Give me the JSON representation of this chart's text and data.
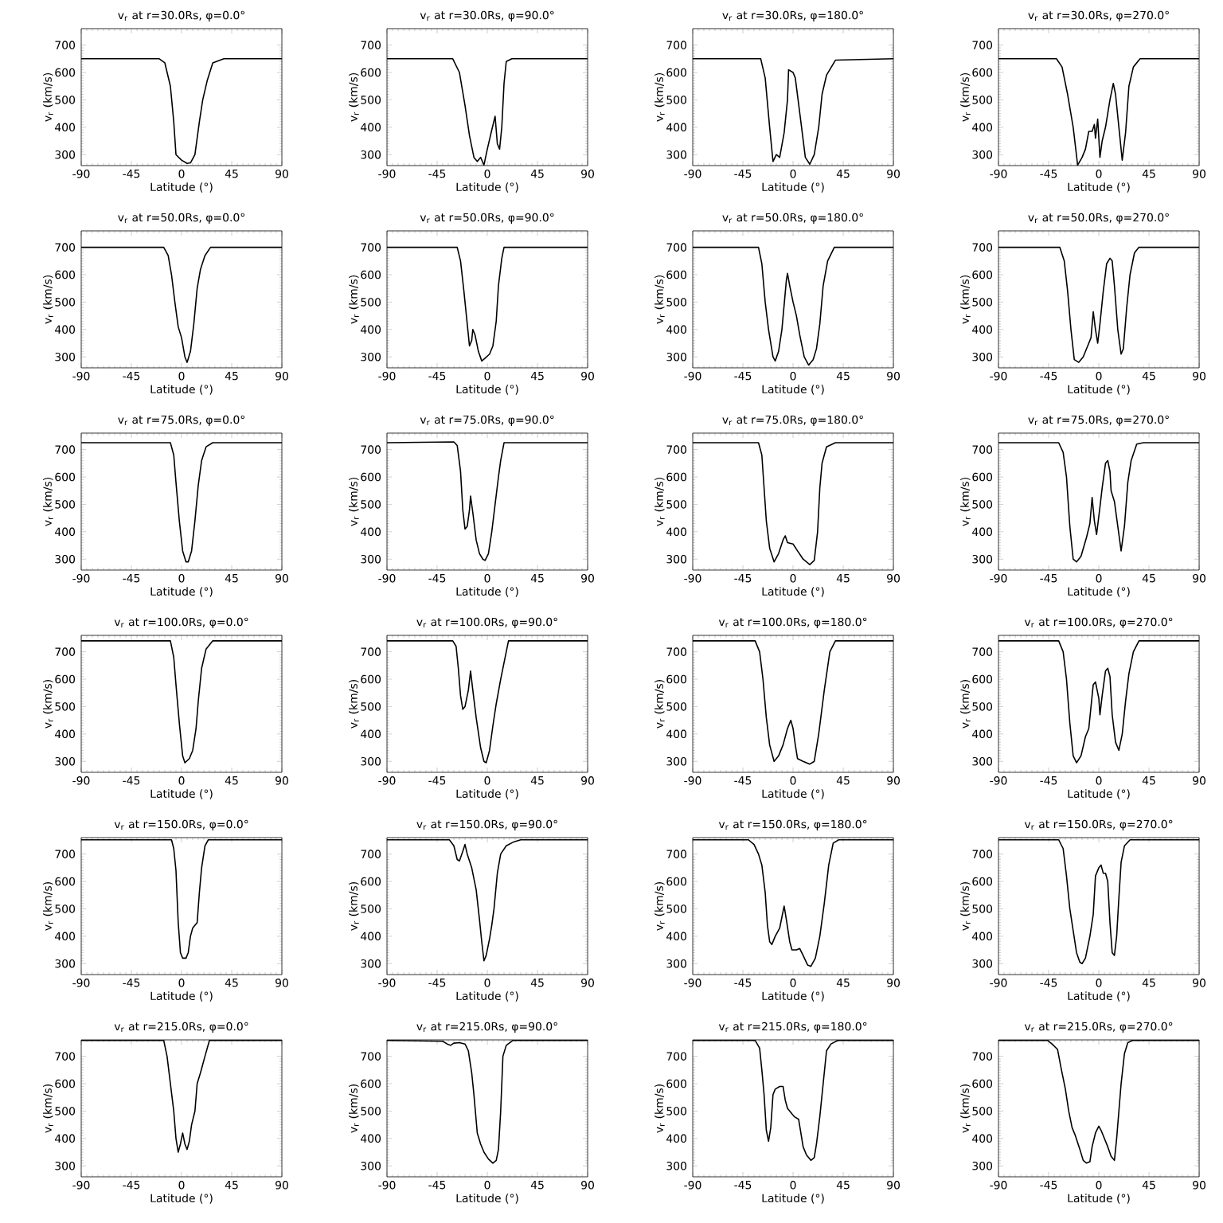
{
  "chart_data": [
    {
      "type": "line",
      "title": "v$_{r}$ at r=30.0Rs, φ=0.0°",
      "xlabel": "Latitude (°)",
      "ylabel": "v$_{r}$ (km/s)",
      "color": "#000000",
      "xlim": [
        -90,
        90
      ],
      "xticks": [
        -90,
        -45,
        0,
        45,
        90
      ],
      "ylim": [
        260,
        760
      ],
      "yticks": [
        300,
        400,
        500,
        600,
        700
      ],
      "x": [
        -90,
        -20,
        -15,
        -10,
        -7,
        -5,
        0,
        5,
        8,
        12,
        16,
        19,
        23,
        28,
        38,
        90
      ],
      "values": [
        650,
        650,
        635,
        550,
        420,
        300,
        280,
        268,
        270,
        300,
        420,
        500,
        570,
        635,
        650,
        650
      ]
    },
    {
      "type": "line",
      "title": "v$_{r}$ at r=30.0Rs, φ=90.0°",
      "xlabel": "Latitude (°)",
      "ylabel": "v$_{r}$ (km/s)",
      "color": "#000000",
      "xlim": [
        -90,
        90
      ],
      "xticks": [
        -90,
        -45,
        0,
        45,
        90
      ],
      "ylim": [
        260,
        760
      ],
      "yticks": [
        300,
        400,
        500,
        600,
        700
      ],
      "x": [
        -90,
        -31,
        -25,
        -20,
        -16,
        -12,
        -9,
        -6,
        -3,
        0,
        4,
        7,
        9,
        11,
        13,
        15,
        17,
        22,
        90
      ],
      "values": [
        650,
        650,
        600,
        480,
        370,
        290,
        275,
        290,
        262,
        320,
        390,
        440,
        340,
        320,
        400,
        560,
        640,
        650,
        650
      ]
    },
    {
      "type": "line",
      "title": "v$_{r}$ at r=30.0Rs, φ=180.0°",
      "xlabel": "Latitude (°)",
      "ylabel": "v$_{r}$ (km/s)",
      "color": "#000000",
      "xlim": [
        -90,
        90
      ],
      "xticks": [
        -90,
        -45,
        0,
        45,
        90
      ],
      "ylim": [
        260,
        760
      ],
      "yticks": [
        300,
        400,
        500,
        600,
        700
      ],
      "x": [
        -90,
        -29,
        -25,
        -21,
        -18,
        -15,
        -12,
        -8,
        -5,
        -4,
        0,
        2,
        7,
        11,
        15,
        19,
        23,
        26,
        30,
        38,
        90
      ],
      "values": [
        650,
        650,
        580,
        400,
        275,
        300,
        290,
        380,
        500,
        610,
        600,
        580,
        420,
        290,
        265,
        300,
        400,
        520,
        590,
        645,
        650
      ]
    },
    {
      "type": "line",
      "title": "v$_{r}$ at r=30.0Rs, φ=270.0°",
      "xlabel": "Latitude (°)",
      "ylabel": "v$_{r}$ (km/s)",
      "color": "#000000",
      "xlim": [
        -90,
        90
      ],
      "xticks": [
        -90,
        -45,
        0,
        45,
        90
      ],
      "ylim": [
        260,
        760
      ],
      "yticks": [
        300,
        400,
        500,
        600,
        700
      ],
      "x": [
        -90,
        -38,
        -33,
        -28,
        -23,
        -19,
        -15,
        -12,
        -9,
        -6,
        -4,
        -3,
        -1,
        1,
        3,
        6,
        10,
        13,
        15,
        18,
        21,
        24,
        27,
        31,
        37,
        90
      ],
      "values": [
        650,
        650,
        620,
        520,
        400,
        262,
        290,
        320,
        385,
        385,
        410,
        360,
        430,
        290,
        350,
        400,
        500,
        560,
        520,
        400,
        280,
        380,
        550,
        620,
        650,
        650
      ]
    },
    {
      "type": "line",
      "title": "v$_{r}$ at r=50.0Rs, φ=0.0°",
      "xlabel": "Latitude (°)",
      "ylabel": "v$_{r}$ (km/s)",
      "color": "#000000",
      "xlim": [
        -90,
        90
      ],
      "xticks": [
        -90,
        -45,
        0,
        45,
        90
      ],
      "ylim": [
        260,
        760
      ],
      "yticks": [
        300,
        400,
        500,
        600,
        700
      ],
      "x": [
        -90,
        -16,
        -12,
        -9,
        -6,
        -3,
        0,
        3,
        5,
        8,
        11,
        14,
        17,
        21,
        26,
        90
      ],
      "values": [
        700,
        700,
        670,
        600,
        500,
        410,
        370,
        300,
        280,
        320,
        420,
        550,
        620,
        670,
        700,
        700
      ]
    },
    {
      "type": "line",
      "title": "v$_{r}$ at r=50.0Rs, φ=90.0°",
      "xlabel": "Latitude (°)",
      "ylabel": "v$_{r}$ (km/s)",
      "color": "#000000",
      "xlim": [
        -90,
        90
      ],
      "xticks": [
        -90,
        -45,
        0,
        45,
        90
      ],
      "ylim": [
        260,
        760
      ],
      "yticks": [
        300,
        400,
        500,
        600,
        700
      ],
      "x": [
        -90,
        -27,
        -24,
        -21,
        -18,
        -16,
        -14,
        -13,
        -11,
        -8,
        -5,
        -2,
        2,
        5,
        8,
        10,
        13,
        15,
        90
      ],
      "values": [
        700,
        700,
        650,
        540,
        420,
        340,
        360,
        400,
        380,
        320,
        285,
        295,
        310,
        340,
        430,
        560,
        660,
        700,
        700
      ]
    },
    {
      "type": "line",
      "title": "v$_{r}$ at r=50.0Rs, φ=180.0°",
      "xlabel": "Latitude (°)",
      "ylabel": "v$_{r}$ (km/s)",
      "color": "#000000",
      "xlim": [
        -90,
        90
      ],
      "xticks": [
        -90,
        -45,
        0,
        45,
        90
      ],
      "ylim": [
        260,
        760
      ],
      "yticks": [
        300,
        400,
        500,
        600,
        700
      ],
      "x": [
        -90,
        -31,
        -28,
        -25,
        -22,
        -18,
        -16,
        -13,
        -10,
        -6,
        -5,
        -3,
        0,
        3,
        6,
        10,
        14,
        18,
        21,
        24,
        27,
        31,
        37,
        90
      ],
      "values": [
        700,
        700,
        640,
        500,
        400,
        300,
        285,
        320,
        400,
        580,
        605,
        560,
        500,
        450,
        380,
        300,
        270,
        290,
        330,
        420,
        560,
        650,
        700,
        700
      ]
    },
    {
      "type": "line",
      "title": "v$_{r}$ at r=50.0Rs, φ=270.0°",
      "xlabel": "Latitude (°)",
      "ylabel": "v$_{r}$ (km/s)",
      "color": "#000000",
      "xlim": [
        -90,
        90
      ],
      "xticks": [
        -90,
        -45,
        0,
        45,
        90
      ],
      "ylim": [
        260,
        760
      ],
      "yticks": [
        300,
        400,
        500,
        600,
        700
      ],
      "x": [
        -90,
        -35,
        -31,
        -28,
        -25,
        -22,
        -18,
        -14,
        -10,
        -7,
        -5,
        -3,
        -1,
        1,
        4,
        7,
        10,
        12,
        14,
        17,
        20,
        22,
        25,
        28,
        32,
        36,
        90
      ],
      "values": [
        700,
        700,
        650,
        540,
        400,
        290,
        280,
        300,
        340,
        370,
        465,
        400,
        350,
        420,
        540,
        640,
        660,
        650,
        560,
        400,
        310,
        330,
        480,
        600,
        680,
        700,
        700
      ]
    },
    {
      "type": "line",
      "title": "v$_{r}$ at r=75.0Rs, φ=0.0°",
      "xlabel": "Latitude (°)",
      "ylabel": "v$_{r}$ (km/s)",
      "color": "#000000",
      "xlim": [
        -90,
        90
      ],
      "xticks": [
        -90,
        -45,
        0,
        45,
        90
      ],
      "ylim": [
        260,
        760
      ],
      "yticks": [
        300,
        400,
        500,
        600,
        700
      ],
      "x": [
        -90,
        -10,
        -7,
        -5,
        -2,
        1,
        4,
        6,
        9,
        12,
        15,
        18,
        22,
        28,
        90
      ],
      "values": [
        725,
        725,
        680,
        580,
        440,
        330,
        290,
        290,
        330,
        440,
        570,
        660,
        710,
        725,
        725
      ]
    },
    {
      "type": "line",
      "title": "v$_{r}$ at r=75.0Rs, φ=90.0°",
      "xlabel": "Latitude (°)",
      "ylabel": "v$_{r}$ (km/s)",
      "color": "#000000",
      "xlim": [
        -90,
        90
      ],
      "xticks": [
        -90,
        -45,
        0,
        45,
        90
      ],
      "ylim": [
        260,
        760
      ],
      "yticks": [
        300,
        400,
        500,
        600,
        700
      ],
      "x": [
        -90,
        -30,
        -27,
        -24,
        -22,
        -20,
        -18,
        -16,
        -15,
        -13,
        -10,
        -7,
        -4,
        -2,
        1,
        4,
        7,
        10,
        12,
        15,
        90
      ],
      "values": [
        725,
        728,
        715,
        620,
        480,
        410,
        420,
        480,
        530,
        470,
        370,
        320,
        300,
        295,
        320,
        400,
        500,
        600,
        660,
        725,
        725
      ]
    },
    {
      "type": "line",
      "title": "v$_{r}$ at r=75.0Rs, φ=180.0°",
      "xlabel": "Latitude (°)",
      "ylabel": "v$_{r}$ (km/s)",
      "color": "#000000",
      "xlim": [
        -90,
        90
      ],
      "xticks": [
        -90,
        -45,
        0,
        45,
        90
      ],
      "ylim": [
        260,
        760
      ],
      "yticks": [
        300,
        400,
        500,
        600,
        700
      ],
      "x": [
        -90,
        -31,
        -28,
        -26,
        -24,
        -21,
        -17,
        -13,
        -9,
        -7,
        -5,
        0,
        4,
        9,
        15,
        19,
        22,
        24,
        26,
        30,
        38,
        90
      ],
      "values": [
        725,
        725,
        680,
        560,
        440,
        340,
        290,
        320,
        370,
        385,
        360,
        355,
        330,
        300,
        280,
        295,
        400,
        560,
        650,
        710,
        725,
        725
      ]
    },
    {
      "type": "line",
      "title": "v$_{r}$ at r=75.0Rs, φ=270.0°",
      "xlabel": "Latitude (°)",
      "ylabel": "v$_{r}$ (km/s)",
      "color": "#000000",
      "xlim": [
        -90,
        90
      ],
      "xticks": [
        -90,
        -45,
        0,
        45,
        90
      ],
      "ylim": [
        260,
        760
      ],
      "yticks": [
        300,
        400,
        500,
        600,
        700
      ],
      "x": [
        -90,
        -36,
        -32,
        -29,
        -26,
        -23,
        -20,
        -16,
        -11,
        -8,
        -6,
        -4,
        -2,
        1,
        3,
        6,
        8,
        10,
        11,
        14,
        17,
        20,
        23,
        26,
        29,
        34,
        40,
        90
      ],
      "values": [
        725,
        725,
        690,
        600,
        420,
        300,
        290,
        310,
        380,
        430,
        525,
        440,
        390,
        490,
        560,
        650,
        660,
        620,
        550,
        510,
        420,
        330,
        420,
        580,
        660,
        720,
        725,
        725
      ]
    },
    {
      "type": "line",
      "title": "v$_{r}$ at r=100.0Rs, φ=0.0°",
      "xlabel": "Latitude (°)",
      "ylabel": "v$_{r}$ (km/s)",
      "color": "#000000",
      "xlim": [
        -90,
        90
      ],
      "xticks": [
        -90,
        -45,
        0,
        45,
        90
      ],
      "ylim": [
        260,
        760
      ],
      "yticks": [
        300,
        400,
        500,
        600,
        700
      ],
      "x": [
        -90,
        -10,
        -7,
        -5,
        -2,
        1,
        3,
        7,
        10,
        13,
        15,
        18,
        22,
        28,
        90
      ],
      "values": [
        740,
        740,
        680,
        580,
        440,
        320,
        295,
        310,
        340,
        420,
        520,
        640,
        710,
        740,
        740
      ]
    },
    {
      "type": "line",
      "title": "v$_{r}$ at r=100.0Rs, φ=90.0°",
      "xlabel": "Latitude (°)",
      "ylabel": "v$_{r}$ (km/s)",
      "color": "#000000",
      "xlim": [
        -90,
        90
      ],
      "xticks": [
        -90,
        -45,
        0,
        45,
        90
      ],
      "ylim": [
        260,
        760
      ],
      "yticks": [
        300,
        400,
        500,
        600,
        700
      ],
      "x": [
        -90,
        -31,
        -28,
        -26,
        -24,
        -22,
        -20,
        -17,
        -15,
        -13,
        -10,
        -6,
        -3,
        -1,
        2,
        5,
        8,
        12,
        15,
        19,
        90
      ],
      "values": [
        740,
        740,
        720,
        640,
        540,
        490,
        500,
        560,
        630,
        560,
        460,
        350,
        300,
        295,
        340,
        430,
        510,
        600,
        660,
        740,
        740
      ]
    },
    {
      "type": "line",
      "title": "v$_{r}$ at r=100.0Rs, φ=180.0°",
      "xlabel": "Latitude (°)",
      "ylabel": "v$_{r}$ (km/s)",
      "color": "#000000",
      "xlim": [
        -90,
        90
      ],
      "xticks": [
        -90,
        -45,
        0,
        45,
        90
      ],
      "ylim": [
        260,
        760
      ],
      "yticks": [
        300,
        400,
        500,
        600,
        700
      ],
      "x": [
        -90,
        -34,
        -30,
        -27,
        -24,
        -21,
        -17,
        -13,
        -9,
        -5,
        -2,
        0,
        2,
        4,
        9,
        15,
        19,
        23,
        28,
        33,
        38,
        90
      ],
      "values": [
        740,
        740,
        700,
        600,
        460,
        360,
        300,
        320,
        360,
        420,
        450,
        420,
        360,
        310,
        300,
        290,
        300,
        400,
        560,
        700,
        740,
        740
      ]
    },
    {
      "type": "line",
      "title": "v$_{r}$ at r=100.0Rs, φ=270.0°",
      "xlabel": "Latitude (°)",
      "ylabel": "v$_{r}$ (km/s)",
      "color": "#000000",
      "xlim": [
        -90,
        90
      ],
      "xticks": [
        -90,
        -45,
        0,
        45,
        90
      ],
      "ylim": [
        260,
        760
      ],
      "yticks": [
        300,
        400,
        500,
        600,
        700
      ],
      "x": [
        -90,
        -36,
        -32,
        -29,
        -26,
        -23,
        -20,
        -16,
        -12,
        -9,
        -7,
        -5,
        -3,
        0,
        1,
        3,
        6,
        8,
        10,
        12,
        15,
        18,
        21,
        24,
        27,
        31,
        36,
        90
      ],
      "values": [
        740,
        740,
        700,
        600,
        440,
        320,
        295,
        320,
        390,
        420,
        500,
        580,
        590,
        530,
        470,
        540,
        630,
        640,
        610,
        470,
        370,
        340,
        400,
        520,
        620,
        700,
        740,
        740
      ]
    },
    {
      "type": "line",
      "title": "v$_{r}$ at r=150.0Rs, φ=0.0°",
      "xlabel": "Latitude (°)",
      "ylabel": "v$_{r}$ (km/s)",
      "color": "#000000",
      "xlim": [
        -90,
        90
      ],
      "xticks": [
        -90,
        -45,
        0,
        45,
        90
      ],
      "ylim": [
        260,
        760
      ],
      "yticks": [
        300,
        400,
        500,
        600,
        700
      ],
      "x": [
        -90,
        -9,
        -7,
        -5,
        -3,
        -1,
        1,
        4,
        6,
        8,
        10,
        14,
        16,
        18,
        21,
        24,
        90
      ],
      "values": [
        752,
        752,
        720,
        640,
        450,
        340,
        320,
        320,
        340,
        400,
        430,
        450,
        560,
        650,
        730,
        752,
        752
      ]
    },
    {
      "type": "line",
      "title": "v$_{r}$ at r=150.0Rs, φ=90.0°",
      "xlabel": "Latitude (°)",
      "ylabel": "v$_{r}$ (km/s)",
      "color": "#000000",
      "xlim": [
        -90,
        90
      ],
      "xticks": [
        -90,
        -45,
        0,
        45,
        90
      ],
      "ylim": [
        260,
        760
      ],
      "yticks": [
        300,
        400,
        500,
        600,
        700
      ],
      "x": [
        -90,
        -34,
        -30,
        -27,
        -25,
        -22,
        -20,
        -18,
        -14,
        -10,
        -7,
        -5,
        -3,
        -1,
        2,
        4,
        6,
        9,
        12,
        17,
        24,
        30,
        90
      ],
      "values": [
        752,
        752,
        730,
        680,
        675,
        710,
        735,
        700,
        650,
        570,
        460,
        380,
        310,
        330,
        390,
        440,
        500,
        630,
        700,
        730,
        745,
        752,
        752
      ]
    },
    {
      "type": "line",
      "title": "v$_{r}$ at r=150.0Rs, φ=180.0°",
      "xlabel": "Latitude (°)",
      "ylabel": "v$_{r}$ (km/s)",
      "color": "#000000",
      "xlim": [
        -90,
        90
      ],
      "xticks": [
        -90,
        -45,
        0,
        45,
        90
      ],
      "ylim": [
        260,
        760
      ],
      "yticks": [
        300,
        400,
        500,
        600,
        700
      ],
      "x": [
        -90,
        -40,
        -35,
        -31,
        -28,
        -25,
        -23,
        -21,
        -19,
        -16,
        -12,
        -10,
        -8,
        -6,
        -3,
        -1,
        3,
        6,
        9,
        13,
        16,
        20,
        24,
        28,
        32,
        36,
        41,
        90
      ],
      "values": [
        752,
        752,
        735,
        700,
        660,
        560,
        440,
        380,
        370,
        400,
        430,
        470,
        510,
        460,
        380,
        350,
        350,
        355,
        330,
        295,
        290,
        320,
        400,
        520,
        660,
        740,
        752,
        752
      ]
    },
    {
      "type": "line",
      "title": "v$_{r}$ at r=150.0Rs, φ=270.0°",
      "xlabel": "Latitude (°)",
      "ylabel": "v$_{r}$ (km/s)",
      "color": "#000000",
      "xlim": [
        -90,
        90
      ],
      "xticks": [
        -90,
        -45,
        0,
        45,
        90
      ],
      "ylim": [
        260,
        760
      ],
      "yticks": [
        300,
        400,
        500,
        600,
        700
      ],
      "x": [
        -90,
        -36,
        -32,
        -29,
        -26,
        -23,
        -20,
        -17,
        -15,
        -12,
        -8,
        -5,
        -3,
        0,
        2,
        4,
        6,
        8,
        10,
        12,
        14,
        16,
        18,
        20,
        23,
        28,
        90
      ],
      "values": [
        752,
        752,
        720,
        620,
        500,
        420,
        340,
        305,
        300,
        320,
        400,
        480,
        620,
        650,
        660,
        630,
        630,
        600,
        450,
        340,
        330,
        400,
        540,
        670,
        730,
        752,
        752
      ]
    },
    {
      "type": "line",
      "title": "v$_{r}$ at r=215.0Rs, φ=0.0°",
      "xlabel": "Latitude (°)",
      "ylabel": "v$_{r}$ (km/s)",
      "color": "#000000",
      "xlim": [
        -90,
        90
      ],
      "xticks": [
        -90,
        -45,
        0,
        45,
        90
      ],
      "ylim": [
        260,
        760
      ],
      "yticks": [
        300,
        400,
        500,
        600,
        700
      ],
      "x": [
        -90,
        -16,
        -13,
        -10,
        -7,
        -5,
        -3,
        -1,
        1,
        3,
        5,
        7,
        9,
        12,
        14,
        17,
        21,
        25,
        90
      ],
      "values": [
        758,
        758,
        700,
        600,
        500,
        400,
        350,
        380,
        420,
        380,
        360,
        390,
        450,
        500,
        600,
        640,
        700,
        758,
        758
      ]
    },
    {
      "type": "line",
      "title": "v$_{r}$ at r=215.0Rs, φ=90.0°",
      "xlabel": "Latitude (°)",
      "ylabel": "v$_{r}$ (km/s)",
      "color": "#000000",
      "xlim": [
        -90,
        90
      ],
      "xticks": [
        -90,
        -45,
        0,
        45,
        90
      ],
      "ylim": [
        260,
        760
      ],
      "yticks": [
        300,
        400,
        500,
        600,
        700
      ],
      "x": [
        -90,
        -40,
        -36,
        -33,
        -30,
        -25,
        -20,
        -17,
        -14,
        -12,
        -9,
        -6,
        -3,
        1,
        5,
        8,
        10,
        12,
        14,
        17,
        23,
        90
      ],
      "values": [
        758,
        755,
        745,
        740,
        748,
        750,
        745,
        720,
        640,
        560,
        420,
        380,
        350,
        325,
        310,
        320,
        360,
        500,
        700,
        740,
        758,
        758
      ]
    },
    {
      "type": "line",
      "title": "v$_{r}$ at r=215.0Rs, φ=180.0°",
      "xlabel": "Latitude (°)",
      "ylabel": "v$_{r}$ (km/s)",
      "color": "#000000",
      "xlim": [
        -90,
        90
      ],
      "xticks": [
        -90,
        -45,
        0,
        45,
        90
      ],
      "ylim": [
        260,
        760
      ],
      "yticks": [
        300,
        400,
        500,
        600,
        700
      ],
      "x": [
        -90,
        -34,
        -30,
        -28,
        -26,
        -24,
        -22,
        -20,
        -18,
        -16,
        -12,
        -9,
        -7,
        -5,
        -3,
        1,
        5,
        7,
        9,
        12,
        16,
        19,
        21,
        24,
        27,
        30,
        34,
        40,
        90
      ],
      "values": [
        758,
        758,
        730,
        650,
        560,
        430,
        390,
        440,
        560,
        580,
        590,
        590,
        540,
        510,
        500,
        480,
        470,
        420,
        370,
        340,
        320,
        330,
        380,
        480,
        600,
        720,
        745,
        758,
        758
      ]
    },
    {
      "type": "line",
      "title": "v$_{r}$ at r=215.0Rs, φ=270.0°",
      "xlabel": "Latitude (°)",
      "ylabel": "v$_{r}$ (km/s)",
      "color": "#000000",
      "xlim": [
        -90,
        90
      ],
      "xticks": [
        -90,
        -45,
        0,
        45,
        90
      ],
      "ylim": [
        260,
        760
      ],
      "yticks": [
        300,
        400,
        500,
        600,
        700
      ],
      "x": [
        -90,
        -46,
        -42,
        -37,
        -34,
        -30,
        -27,
        -24,
        -21,
        -17,
        -14,
        -11,
        -8,
        -6,
        -3,
        0,
        2,
        5,
        8,
        11,
        14,
        16,
        18,
        20,
        23,
        26,
        30,
        90
      ],
      "values": [
        758,
        758,
        745,
        725,
        660,
        580,
        500,
        440,
        410,
        360,
        320,
        310,
        315,
        370,
        420,
        445,
        430,
        400,
        370,
        335,
        320,
        400,
        500,
        600,
        710,
        750,
        758,
        758
      ]
    }
  ]
}
